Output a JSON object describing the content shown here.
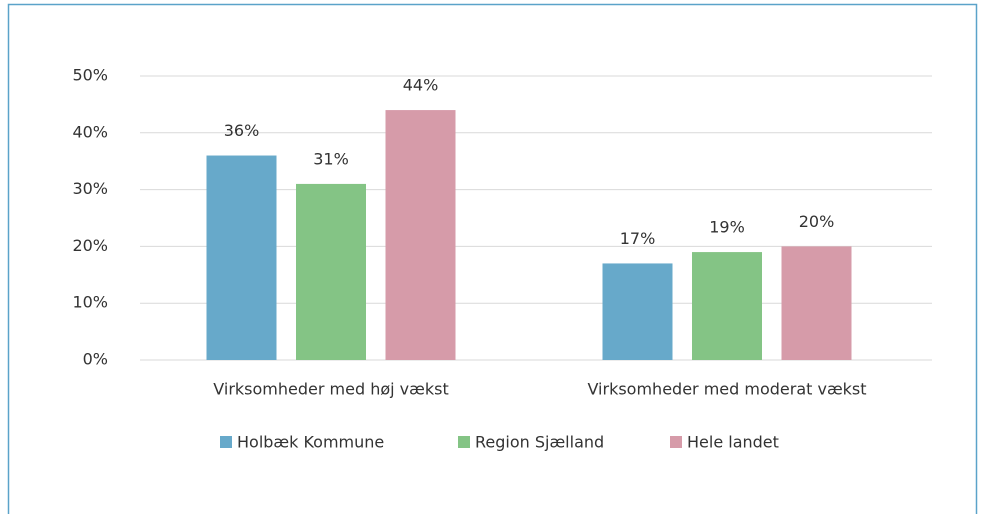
{
  "chart_data": {
    "type": "bar",
    "categories": [
      "Virksomheder med høj vækst",
      "Virksomheder med moderat vækst"
    ],
    "series": [
      {
        "name": "Holbæk Kommune",
        "color": "#67a9ca",
        "values": [
          36,
          17
        ],
        "value_labels": [
          "36%",
          "17%"
        ]
      },
      {
        "name": "Region Sjælland",
        "color": "#84c485",
        "values": [
          31,
          19
        ],
        "value_labels": [
          "31%",
          "19%"
        ]
      },
      {
        "name": "Hele landet",
        "color": "#d69ba9",
        "values": [
          44,
          20
        ],
        "value_labels": [
          "44%",
          "20%"
        ]
      }
    ],
    "ylim": [
      0,
      50
    ],
    "yticks": [
      {
        "value": 0,
        "label": "0%"
      },
      {
        "value": 10,
        "label": "10%"
      },
      {
        "value": 20,
        "label": "20%"
      },
      {
        "value": 30,
        "label": "30%"
      },
      {
        "value": 40,
        "label": "40%"
      },
      {
        "value": 50,
        "label": "50%"
      }
    ],
    "grid": true,
    "legend": "bottom"
  }
}
